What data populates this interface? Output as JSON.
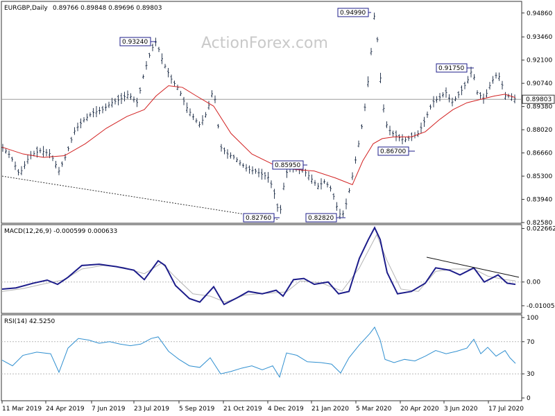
{
  "window": {
    "symbol_label": "EURGBP,Daily",
    "ohlc_label": "0.89766 0.89848 0.89696 0.89803"
  },
  "watermark": "ActionForex.com",
  "colors": {
    "candles": "#2b3a52",
    "ma": "#d22020",
    "macd": "#1c1c8a",
    "macd_signal": "#b4b4b4",
    "rsi": "#2f8fd0",
    "trendline": "#333333",
    "grid": "#b8b8b8",
    "current_price_line": "#9a9a9a"
  },
  "chart_data": [
    {
      "type": "candlestick",
      "title": "EURGBP,Daily",
      "ylim": [
        0.8258,
        0.955
      ],
      "y_ticks": [
        "0.94860",
        "0.93460",
        "0.92100",
        "0.90740",
        "0.89380",
        "0.88020",
        "0.86660",
        "0.85300",
        "0.83940",
        "0.82580"
      ],
      "current_price": "0.89803",
      "x_ticks": [
        "11 Mar 2019",
        "24 Apr 2019",
        "7 Jun 2019",
        "23 Jul 2019",
        "5 Sep 2019",
        "21 Oct 2019",
        "4 Dec 2019",
        "21 Jan 2020",
        "5 Mar 2020",
        "20 Apr 2020",
        "3 Jun 2020",
        "17 Jul 2020"
      ],
      "series_price": [
        [
          0,
          0.87
        ],
        [
          12,
          0.865
        ],
        [
          25,
          0.854
        ],
        [
          40,
          0.865
        ],
        [
          55,
          0.868
        ],
        [
          70,
          0.866
        ],
        [
          82,
          0.856
        ],
        [
          92,
          0.865
        ],
        [
          105,
          0.88
        ],
        [
          118,
          0.886
        ],
        [
          130,
          0.89
        ],
        [
          145,
          0.892
        ],
        [
          158,
          0.896
        ],
        [
          170,
          0.898
        ],
        [
          182,
          0.901
        ],
        [
          195,
          0.896
        ],
        [
          205,
          0.914
        ],
        [
          215,
          0.927
        ],
        [
          222,
          0.932
        ],
        [
          232,
          0.92
        ],
        [
          245,
          0.909
        ],
        [
          255,
          0.904
        ],
        [
          265,
          0.894
        ],
        [
          275,
          0.888
        ],
        [
          285,
          0.883
        ],
        [
          295,
          0.89
        ],
        [
          305,
          0.905
        ],
        [
          315,
          0.87
        ],
        [
          325,
          0.866
        ],
        [
          335,
          0.864
        ],
        [
          345,
          0.86
        ],
        [
          355,
          0.857
        ],
        [
          365,
          0.856
        ],
        [
          375,
          0.854
        ],
        [
          385,
          0.852
        ],
        [
          393,
          0.842
        ],
        [
          400,
          0.829
        ],
        [
          406,
          0.847
        ],
        [
          412,
          0.858
        ],
        [
          425,
          0.858
        ],
        [
          435,
          0.856
        ],
        [
          445,
          0.852
        ],
        [
          455,
          0.847
        ],
        [
          465,
          0.85
        ],
        [
          475,
          0.845
        ],
        [
          485,
          0.832
        ],
        [
          490,
          0.829
        ],
        [
          497,
          0.838
        ],
        [
          505,
          0.853
        ],
        [
          515,
          0.874
        ],
        [
          522,
          0.89
        ],
        [
          528,
          0.91
        ],
        [
          533,
          0.93
        ],
        [
          536,
          0.948
        ],
        [
          540,
          0.938
        ],
        [
          546,
          0.908
        ],
        [
          552,
          0.885
        ],
        [
          560,
          0.879
        ],
        [
          570,
          0.876
        ],
        [
          580,
          0.874
        ],
        [
          590,
          0.876
        ],
        [
          600,
          0.878
        ],
        [
          610,
          0.886
        ],
        [
          620,
          0.896
        ],
        [
          630,
          0.899
        ],
        [
          640,
          0.902
        ],
        [
          648,
          0.896
        ],
        [
          655,
          0.899
        ],
        [
          662,
          0.903
        ],
        [
          670,
          0.908
        ],
        [
          678,
          0.916
        ],
        [
          685,
          0.902
        ],
        [
          695,
          0.898
        ],
        [
          705,
          0.908
        ],
        [
          712,
          0.912
        ],
        [
          718,
          0.911
        ],
        [
          725,
          0.9
        ],
        [
          732,
          0.9
        ],
        [
          740,
          0.898
        ]
      ],
      "series_ma": [
        [
          0,
          0.87
        ],
        [
          30,
          0.866
        ],
        [
          60,
          0.864
        ],
        [
          90,
          0.865
        ],
        [
          120,
          0.872
        ],
        [
          150,
          0.881
        ],
        [
          180,
          0.888
        ],
        [
          205,
          0.892
        ],
        [
          222,
          0.9
        ],
        [
          240,
          0.906
        ],
        [
          260,
          0.905
        ],
        [
          280,
          0.9
        ],
        [
          305,
          0.894
        ],
        [
          330,
          0.878
        ],
        [
          360,
          0.866
        ],
        [
          390,
          0.86
        ],
        [
          420,
          0.857
        ],
        [
          450,
          0.856
        ],
        [
          480,
          0.852
        ],
        [
          505,
          0.848
        ],
        [
          520,
          0.862
        ],
        [
          535,
          0.872
        ],
        [
          548,
          0.875
        ],
        [
          565,
          0.876
        ],
        [
          590,
          0.876
        ],
        [
          610,
          0.879
        ],
        [
          630,
          0.886
        ],
        [
          650,
          0.892
        ],
        [
          670,
          0.896
        ],
        [
          690,
          0.898
        ],
        [
          710,
          0.9
        ],
        [
          725,
          0.901
        ],
        [
          740,
          0.899
        ]
      ],
      "annotations": [
        {
          "label": "0.93240"
        },
        {
          "label": "0.94990"
        },
        {
          "label": "0.91750"
        },
        {
          "label": "0.85950"
        },
        {
          "label": "0.86700"
        },
        {
          "label": "0.82760"
        },
        {
          "label": "0.82820"
        }
      ]
    },
    {
      "type": "line",
      "title": "MACD(12,26,9) -0.000599 0.000633",
      "ylim": [
        -0.013,
        0.024
      ],
      "y_ticks": [
        "0.022662",
        "0.00",
        "-0.010052"
      ],
      "macd": [
        [
          0,
          -0.003
        ],
        [
          20,
          -0.0025
        ],
        [
          45,
          -0.0005
        ],
        [
          65,
          0.0008
        ],
        [
          80,
          -0.001
        ],
        [
          95,
          0.002
        ],
        [
          115,
          0.007
        ],
        [
          140,
          0.0075
        ],
        [
          165,
          0.0065
        ],
        [
          190,
          0.005
        ],
        [
          205,
          0.001
        ],
        [
          225,
          0.009
        ],
        [
          235,
          0.007
        ],
        [
          250,
          -0.0015
        ],
        [
          270,
          -0.007
        ],
        [
          285,
          -0.0085
        ],
        [
          305,
          -0.002
        ],
        [
          320,
          -0.0095
        ],
        [
          340,
          -0.0065
        ],
        [
          355,
          -0.004
        ],
        [
          375,
          -0.005
        ],
        [
          395,
          -0.0035
        ],
        [
          405,
          -0.006
        ],
        [
          420,
          0.001
        ],
        [
          435,
          0.0015
        ],
        [
          450,
          -0.001
        ],
        [
          470,
          0.0
        ],
        [
          485,
          -0.005
        ],
        [
          500,
          -0.004
        ],
        [
          515,
          0.01
        ],
        [
          528,
          0.018
        ],
        [
          537,
          0.023
        ],
        [
          545,
          0.018
        ],
        [
          555,
          0.004
        ],
        [
          570,
          -0.005
        ],
        [
          590,
          -0.004
        ],
        [
          610,
          -0.0005
        ],
        [
          625,
          0.006
        ],
        [
          645,
          0.005
        ],
        [
          660,
          0.003
        ],
        [
          680,
          0.006
        ],
        [
          695,
          0.0
        ],
        [
          715,
          0.003
        ],
        [
          728,
          -0.0005
        ],
        [
          740,
          -0.001
        ]
      ],
      "signal": [
        [
          0,
          -0.004
        ],
        [
          30,
          -0.0028
        ],
        [
          60,
          -0.0008
        ],
        [
          90,
          0.001
        ],
        [
          115,
          0.0055
        ],
        [
          145,
          0.007
        ],
        [
          175,
          0.0062
        ],
        [
          205,
          0.0035
        ],
        [
          230,
          0.008
        ],
        [
          250,
          0.002
        ],
        [
          275,
          -0.005
        ],
        [
          300,
          -0.006
        ],
        [
          322,
          -0.0085
        ],
        [
          350,
          -0.0055
        ],
        [
          380,
          -0.0048
        ],
        [
          410,
          -0.0042
        ],
        [
          430,
          0.0005
        ],
        [
          460,
          -0.0004
        ],
        [
          490,
          -0.0038
        ],
        [
          515,
          0.006
        ],
        [
          540,
          0.02
        ],
        [
          555,
          0.009
        ],
        [
          575,
          -0.003
        ],
        [
          600,
          -0.004
        ],
        [
          625,
          0.0045
        ],
        [
          650,
          0.0055
        ],
        [
          680,
          0.0055
        ],
        [
          700,
          0.0025
        ],
        [
          725,
          0.001
        ],
        [
          740,
          0.0005
        ]
      ],
      "trendline": "descending"
    },
    {
      "type": "line",
      "title": "RSI(14) 42.5250",
      "ylim": [
        0,
        100
      ],
      "y_ticks": [
        "100",
        "70",
        "30",
        "0"
      ],
      "rsi": [
        [
          0,
          47
        ],
        [
          15,
          40
        ],
        [
          30,
          53
        ],
        [
          50,
          57
        ],
        [
          70,
          55
        ],
        [
          82,
          32
        ],
        [
          95,
          62
        ],
        [
          110,
          74
        ],
        [
          125,
          72
        ],
        [
          140,
          68
        ],
        [
          155,
          70
        ],
        [
          170,
          67
        ],
        [
          185,
          65
        ],
        [
          200,
          67
        ],
        [
          215,
          74
        ],
        [
          225,
          76
        ],
        [
          240,
          58
        ],
        [
          255,
          48
        ],
        [
          270,
          40
        ],
        [
          285,
          38
        ],
        [
          300,
          50
        ],
        [
          315,
          30
        ],
        [
          330,
          33
        ],
        [
          345,
          37
        ],
        [
          360,
          40
        ],
        [
          375,
          35
        ],
        [
          390,
          40
        ],
        [
          400,
          26
        ],
        [
          410,
          56
        ],
        [
          425,
          53
        ],
        [
          440,
          45
        ],
        [
          460,
          44
        ],
        [
          475,
          42
        ],
        [
          488,
          31
        ],
        [
          500,
          50
        ],
        [
          515,
          66
        ],
        [
          530,
          80
        ],
        [
          537,
          88
        ],
        [
          545,
          72
        ],
        [
          552,
          48
        ],
        [
          565,
          44
        ],
        [
          580,
          48
        ],
        [
          595,
          46
        ],
        [
          610,
          52
        ],
        [
          625,
          59
        ],
        [
          640,
          55
        ],
        [
          655,
          58
        ],
        [
          670,
          62
        ],
        [
          680,
          73
        ],
        [
          690,
          55
        ],
        [
          700,
          63
        ],
        [
          712,
          52
        ],
        [
          725,
          59
        ],
        [
          732,
          50
        ],
        [
          740,
          43
        ]
      ]
    }
  ]
}
